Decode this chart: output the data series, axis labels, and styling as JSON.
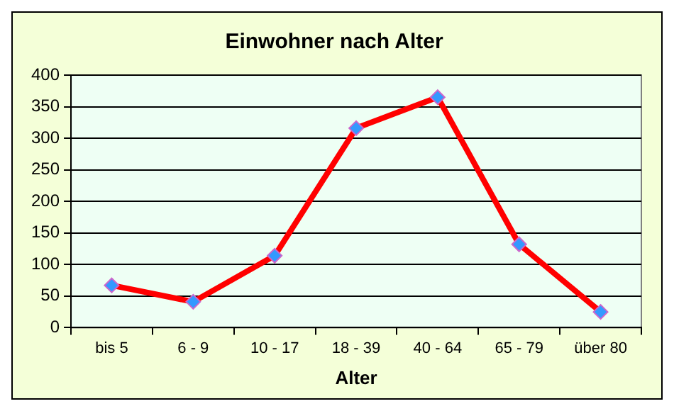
{
  "chart_data": {
    "type": "line",
    "title": "Einwohner nach Alter",
    "xlabel": "Alter",
    "categories": [
      "bis 5",
      "6 - 9",
      "10 - 17",
      "18 - 39",
      "40 - 64",
      "65 - 79",
      "über 80"
    ],
    "series": [
      {
        "color": "#ff0000",
        "values": [
          67,
          41,
          114,
          316,
          365,
          132,
          25
        ]
      }
    ],
    "ylim": [
      0,
      400
    ],
    "yticks": [
      0,
      50,
      100,
      150,
      200,
      250,
      300,
      350,
      400
    ],
    "grid": "y",
    "legend": false,
    "marker": "diamond",
    "line_style": "solid"
  }
}
